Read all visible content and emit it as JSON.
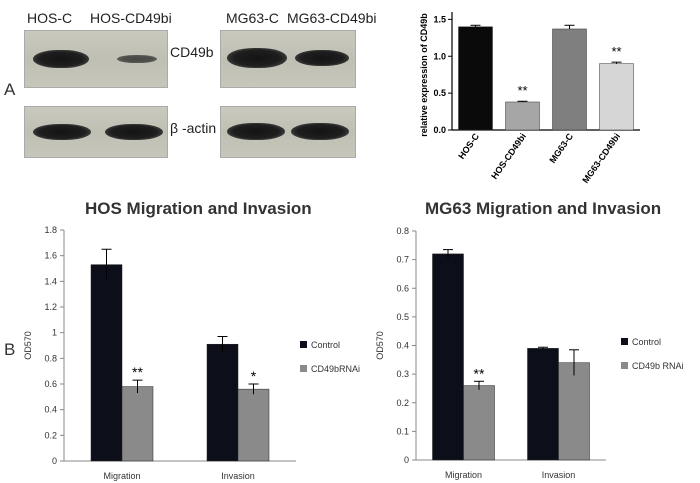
{
  "panels": {
    "a": "A",
    "b": "B"
  },
  "blot": {
    "hos_lanes": [
      "HOS-C",
      "HOS-CD49bi"
    ],
    "mg_lanes": [
      "MG63-C",
      "MG63-CD49bi"
    ],
    "band_labels": [
      "CD49b",
      "β -actin"
    ]
  },
  "chart_data": [
    {
      "type": "bar",
      "title": "",
      "ylabel": "relative expression of CD49b",
      "xlabel": "",
      "categories": [
        "HOS-C",
        "HOS-CD49bi",
        "MG63-C",
        "MG63-CD49bi"
      ],
      "values": [
        1.4,
        0.38,
        1.37,
        0.9
      ],
      "errors": [
        0.02,
        0.01,
        0.05,
        0.02
      ],
      "colors": [
        "#0a0a0a",
        "#a6a6a6",
        "#7f7f7f",
        "#d6d6d6"
      ],
      "significance": [
        "",
        "**",
        "",
        "**"
      ],
      "ylim": [
        0,
        1.6
      ],
      "yticks": [
        "0.0",
        "0.5",
        "1.0",
        "1.5"
      ]
    },
    {
      "type": "bar",
      "title": "HOS Migration and Invasion",
      "ylabel": "OD570",
      "categories": [
        "Migration",
        "Invasion"
      ],
      "series": [
        {
          "name": "Control",
          "values": [
            1.53,
            0.91
          ],
          "errors": [
            0.12,
            0.06
          ],
          "color": "#0c0f1a"
        },
        {
          "name": "CD49bRNAi",
          "values": [
            0.58,
            0.56
          ],
          "errors": [
            0.05,
            0.04
          ],
          "color": "#8a8a8a"
        }
      ],
      "significance": [
        [
          "",
          "**"
        ],
        [
          "",
          "*"
        ]
      ],
      "ylim": [
        0,
        1.8
      ],
      "yticks": [
        "0",
        "0.2",
        "0.4",
        "0.6",
        "0.8",
        "1",
        "1.2",
        "1.4",
        "1.6",
        "1.8"
      ],
      "legend": [
        "Control",
        "CD49bRNAi"
      ]
    },
    {
      "type": "bar",
      "title": "MG63 Migration and Invasion",
      "ylabel": "OD570",
      "categories": [
        "Migration",
        "Invasion"
      ],
      "series": [
        {
          "name": "Control",
          "values": [
            0.72,
            0.39
          ],
          "errors": [
            0.015,
            0.004
          ],
          "color": "#0c0f1a"
        },
        {
          "name": "CD49b RNAi",
          "values": [
            0.26,
            0.34
          ],
          "errors": [
            0.015,
            0.045
          ],
          "color": "#8a8a8a"
        }
      ],
      "significance": [
        [
          "",
          "**"
        ],
        [
          "",
          ""
        ]
      ],
      "ylim": [
        0,
        0.8
      ],
      "yticks": [
        "0",
        "0.1",
        "0.2",
        "0.3",
        "0.4",
        "0.5",
        "0.6",
        "0.7",
        "0.8"
      ],
      "legend": [
        "Control",
        "CD49b RNAi"
      ]
    }
  ]
}
